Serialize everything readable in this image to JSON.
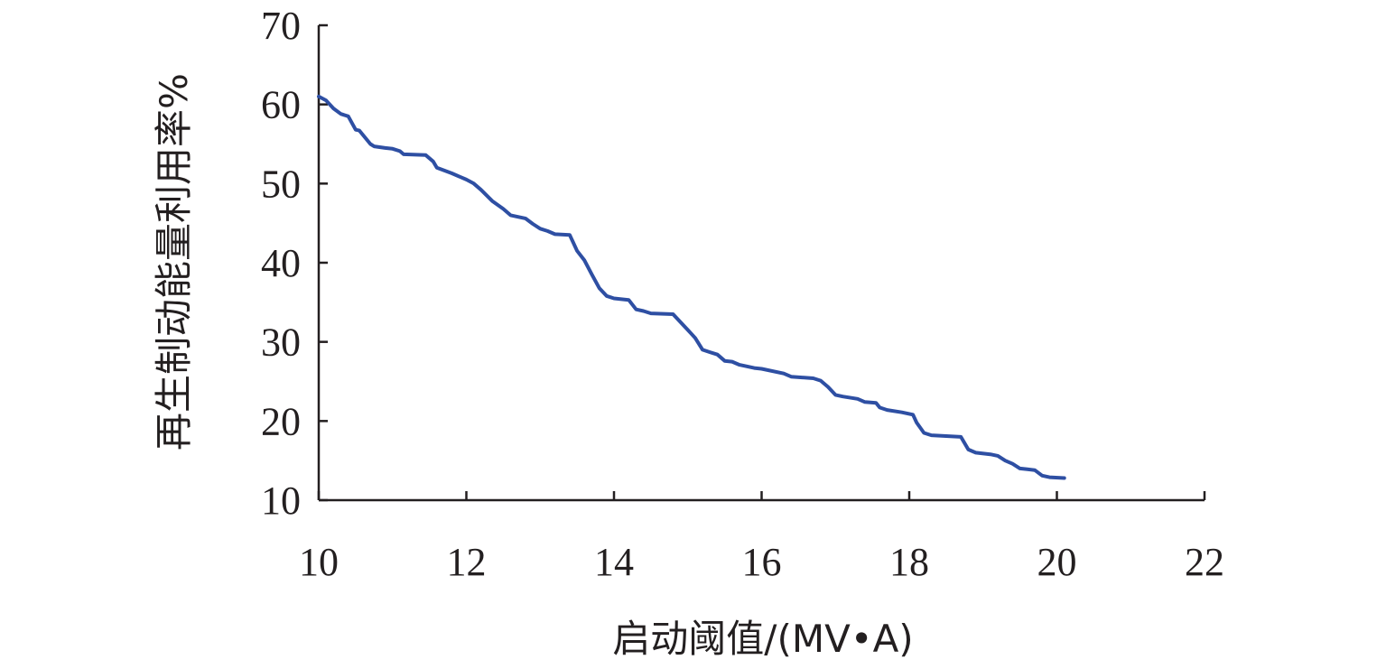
{
  "chart_data": {
    "type": "line",
    "xlabel": "启动阈值/(MV•A)",
    "ylabel": "再生制动能量利用率%",
    "xlim": [
      10,
      22
    ],
    "ylim": [
      10,
      70
    ],
    "xticks": [
      "10",
      "12",
      "14",
      "16",
      "18",
      "20",
      "22"
    ],
    "yticks": [
      "10",
      "20",
      "30",
      "40",
      "50",
      "60",
      "70"
    ],
    "grid": false,
    "line_color": "#2e4fa3",
    "series": [
      {
        "x": [
          10.0,
          10.1,
          10.2,
          10.3,
          10.4,
          10.5,
          10.55,
          10.7,
          10.75,
          10.9,
          11.0,
          11.1,
          11.15,
          11.45,
          11.55,
          11.6,
          11.8,
          12.0,
          12.1,
          12.2,
          12.35,
          12.5,
          12.6,
          12.8,
          12.9,
          13.0,
          13.1,
          13.2,
          13.4,
          13.5,
          13.6,
          13.7,
          13.8,
          13.9,
          14.0,
          14.2,
          14.3,
          14.4,
          14.5,
          14.8,
          14.9,
          15.0,
          15.1,
          15.2,
          15.3,
          15.4,
          15.5,
          15.6,
          15.7,
          15.8,
          15.9,
          16.0,
          16.3,
          16.4,
          16.7,
          16.8,
          16.9,
          17.0,
          17.1,
          17.3,
          17.4,
          17.55,
          17.6,
          17.7,
          17.9,
          18.05,
          18.1,
          18.2,
          18.3,
          18.5,
          18.7,
          18.8,
          18.9,
          19.1,
          19.2,
          19.3,
          19.4,
          19.5,
          19.6,
          19.7,
          19.8,
          19.9,
          20.1
        ],
        "y": [
          61.0,
          60.5,
          59.5,
          58.8,
          58.5,
          56.8,
          56.7,
          55.0,
          54.7,
          54.5,
          54.4,
          54.1,
          53.7,
          53.6,
          52.8,
          52.0,
          51.3,
          50.5,
          50.0,
          49.2,
          47.8,
          46.8,
          46.0,
          45.6,
          44.9,
          44.3,
          44.0,
          43.6,
          43.5,
          41.5,
          40.3,
          38.5,
          36.8,
          35.8,
          35.5,
          35.3,
          34.1,
          33.9,
          33.6,
          33.5,
          32.5,
          31.5,
          30.5,
          29.0,
          28.7,
          28.4,
          27.6,
          27.5,
          27.1,
          26.9,
          26.7,
          26.6,
          26.0,
          25.6,
          25.4,
          25.1,
          24.3,
          23.3,
          23.1,
          22.8,
          22.4,
          22.3,
          21.7,
          21.4,
          21.1,
          20.8,
          19.8,
          18.5,
          18.2,
          18.1,
          18.0,
          16.4,
          16.0,
          15.8,
          15.6,
          15.0,
          14.6,
          14.0,
          13.9,
          13.8,
          13.1,
          12.9,
          12.8
        ]
      }
    ]
  }
}
